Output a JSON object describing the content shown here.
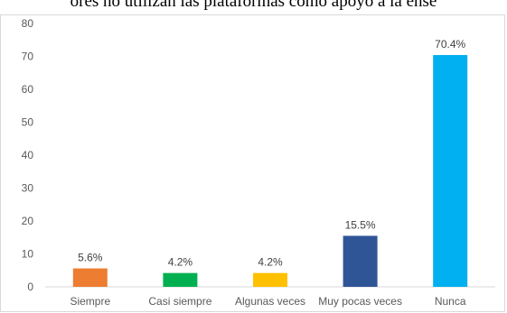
{
  "header": {
    "text": "ores no utilizan las plataformas como apoyo a la ense"
  },
  "chart_data": {
    "type": "bar",
    "categories": [
      "Siempre",
      "Casi siempre",
      "Algunas veces",
      "Muy pocas veces",
      "Nunca"
    ],
    "values": [
      5.6,
      4.2,
      4.2,
      15.5,
      70.4
    ],
    "data_labels": [
      "5.6%",
      "4.2%",
      "4.2%",
      "15.5%",
      "70.4%"
    ],
    "colors": [
      "#ed7d31",
      "#00b050",
      "#ffc000",
      "#2f5597",
      "#00b0f0"
    ],
    "y_ticks": [
      "0",
      "10",
      "20",
      "30",
      "40",
      "50",
      "60",
      "70",
      "80"
    ],
    "ylim": [
      0,
      80
    ],
    "grid": false,
    "legend": "none"
  }
}
